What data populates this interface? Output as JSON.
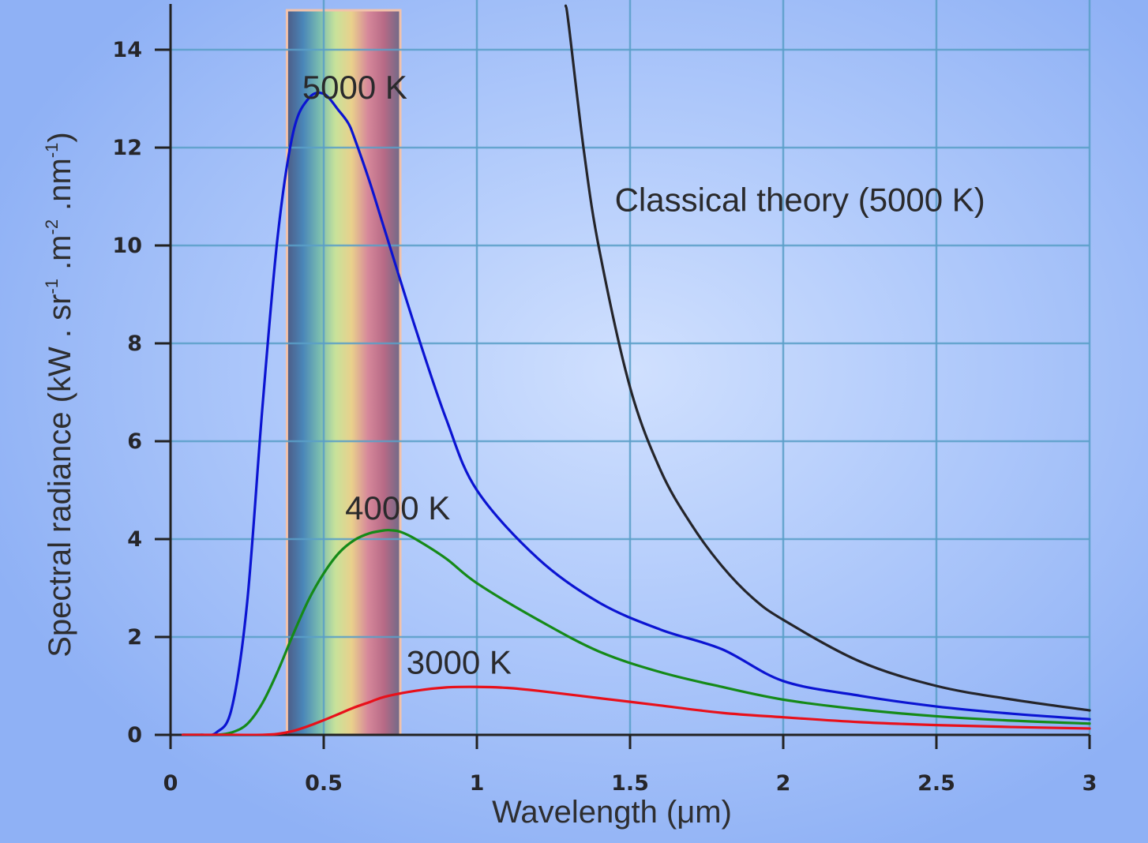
{
  "chart_data": {
    "type": "line",
    "xlabel": "Wavelength (μm)",
    "ylabel": {
      "base": "Spectral radiance (kW . sr",
      "sup1": "-1",
      "mid1": " .m",
      "sup2": "-2",
      "mid2": " .nm",
      "sup3": "-1",
      "end": ")"
    },
    "xlim": [
      0,
      3
    ],
    "ylim": [
      0,
      14
    ],
    "x_ticks": [
      0,
      0.5,
      1,
      1.5,
      2,
      2.5,
      3
    ],
    "x_tick_labels": [
      "0",
      "0.5",
      "1",
      "1.5",
      "2",
      "2.5",
      "3"
    ],
    "y_ticks": [
      0,
      2,
      4,
      6,
      8,
      10,
      12,
      14
    ],
    "y_tick_labels": [
      "0",
      "2",
      "4",
      "6",
      "8",
      "10",
      "12",
      "14"
    ],
    "grid": true,
    "visible_band": {
      "x_start": 0.38,
      "x_end": 0.75,
      "colors": [
        "#4d5b86",
        "#4a86b8",
        "#79bcb0",
        "#c8e29a",
        "#e9d08c",
        "#d6889a",
        "#b76a86",
        "#6e6a88"
      ]
    },
    "series": [
      {
        "name": "5000 K",
        "color": "#0b14d2",
        "x": [
          0.04,
          0.1,
          0.15,
          0.2,
          0.25,
          0.3,
          0.35,
          0.4,
          0.45,
          0.5,
          0.55,
          0.58,
          0.6,
          0.65,
          0.7,
          0.8,
          0.9,
          1.0,
          1.2,
          1.4,
          1.6,
          1.8,
          2.0,
          2.25,
          2.5,
          2.75,
          3.0
        ],
        "y": [
          0.0,
          0.0,
          0.05,
          0.55,
          2.7,
          6.7,
          10.2,
          12.3,
          13.0,
          13.1,
          12.75,
          12.5,
          12.2,
          11.3,
          10.3,
          8.3,
          6.45,
          5.0,
          3.6,
          2.7,
          2.15,
          1.75,
          1.1,
          0.8,
          0.58,
          0.43,
          0.32
        ]
      },
      {
        "name": "4000 K",
        "color": "#158a18",
        "x": [
          0.04,
          0.1,
          0.15,
          0.2,
          0.25,
          0.3,
          0.35,
          0.4,
          0.45,
          0.5,
          0.55,
          0.6,
          0.65,
          0.7,
          0.72,
          0.75,
          0.8,
          0.9,
          1.0,
          1.2,
          1.4,
          1.6,
          1.8,
          2.0,
          2.25,
          2.5,
          2.75,
          3.0
        ],
        "y": [
          0.0,
          0.0,
          0.0,
          0.05,
          0.22,
          0.65,
          1.3,
          2.05,
          2.75,
          3.3,
          3.72,
          3.98,
          4.12,
          4.18,
          4.18,
          4.15,
          4.0,
          3.6,
          3.1,
          2.35,
          1.7,
          1.28,
          0.98,
          0.72,
          0.52,
          0.38,
          0.29,
          0.23
        ]
      },
      {
        "name": "3000 K",
        "color": "#e8101a",
        "x": [
          0.04,
          0.2,
          0.3,
          0.35,
          0.4,
          0.45,
          0.5,
          0.55,
          0.6,
          0.65,
          0.7,
          0.8,
          0.9,
          1.0,
          1.1,
          1.2,
          1.4,
          1.6,
          1.8,
          2.0,
          2.25,
          2.5,
          2.75,
          3.0
        ],
        "y": [
          0.0,
          0.0,
          0.0,
          0.02,
          0.08,
          0.18,
          0.3,
          0.43,
          0.56,
          0.67,
          0.78,
          0.9,
          0.97,
          0.98,
          0.96,
          0.9,
          0.75,
          0.6,
          0.45,
          0.36,
          0.26,
          0.2,
          0.16,
          0.13
        ]
      },
      {
        "name": "Classical theory (5000 K)",
        "color": "#25252a",
        "x": [
          1.29,
          1.3,
          1.35,
          1.4,
          1.5,
          1.6,
          1.7,
          1.8,
          1.9,
          2.0,
          2.25,
          2.5,
          2.75,
          3.0
        ],
        "y": [
          14.9,
          14.5,
          11.9,
          9.9,
          7.1,
          5.4,
          4.3,
          3.45,
          2.8,
          2.35,
          1.5,
          1.0,
          0.72,
          0.5
        ]
      }
    ],
    "annotations": [
      {
        "text": "5000 K",
        "x": 0.43,
        "y": 13.0
      },
      {
        "text": "4000 K",
        "x": 0.57,
        "y": 4.4
      },
      {
        "text": "3000 K",
        "x": 0.77,
        "y": 1.25
      },
      {
        "text": "Classical theory (5000 K)",
        "x": 1.45,
        "y": 10.7
      }
    ]
  }
}
